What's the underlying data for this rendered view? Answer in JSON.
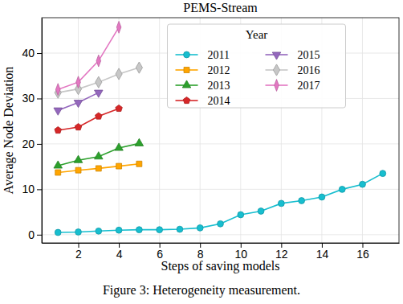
{
  "chart_data": {
    "type": "line",
    "title": "PEMS-Stream",
    "x_label": "Steps of saving models",
    "y_label": "Average Node Deviation",
    "caption": "Figure 3: Heterogeneity measurement.",
    "legend_title": "Year",
    "legend": "upper center",
    "grid": true,
    "xlim": [
      0.2,
      17.8
    ],
    "ylim": [
      -1.8,
      47.8
    ],
    "xticks": [
      2,
      4,
      6,
      8,
      10,
      12,
      14,
      16
    ],
    "yticks": [
      0,
      10,
      20,
      30,
      40
    ],
    "series": [
      {
        "name": "2011",
        "color": "#17becf",
        "marker": "circle",
        "x": [
          1,
          2,
          3,
          4,
          5,
          6,
          7,
          8,
          9,
          10,
          11,
          12,
          13,
          14,
          15,
          16,
          17
        ],
        "values": [
          0.5,
          0.6,
          0.8,
          1.0,
          1.1,
          1.1,
          1.2,
          1.5,
          2.4,
          4.4,
          5.2,
          6.9,
          7.5,
          8.3,
          10.0,
          11.1,
          13.5
        ]
      },
      {
        "name": "2012",
        "color": "#ffa500",
        "marker": "square",
        "x": [
          1,
          2,
          3,
          4,
          5
        ],
        "values": [
          13.7,
          14.2,
          14.6,
          15.1,
          15.6
        ]
      },
      {
        "name": "2013",
        "color": "#2ca02c",
        "marker": "triangle-up",
        "x": [
          1,
          2,
          3,
          4,
          5
        ],
        "values": [
          15.2,
          16.4,
          17.2,
          19.1,
          20.1
        ]
      },
      {
        "name": "2014",
        "color": "#d62728",
        "marker": "pentagon",
        "x": [
          1,
          2,
          3,
          4
        ],
        "values": [
          23.0,
          23.7,
          26.1,
          27.8
        ]
      },
      {
        "name": "2015",
        "color": "#9467bd",
        "marker": "triangle-down",
        "x": [
          1,
          2,
          3
        ],
        "values": [
          27.4,
          29.1,
          31.3
        ]
      },
      {
        "name": "2016",
        "color": "#c7c7c7",
        "marker": "diamond",
        "x": [
          1,
          2,
          3,
          4,
          5
        ],
        "values": [
          31.3,
          32.1,
          33.6,
          35.4,
          36.8
        ]
      },
      {
        "name": "2017",
        "color": "#e377c2",
        "marker": "thin-diamond",
        "x": [
          1,
          2,
          3,
          4
        ],
        "values": [
          32.0,
          33.6,
          38.3,
          45.7
        ]
      }
    ]
  }
}
